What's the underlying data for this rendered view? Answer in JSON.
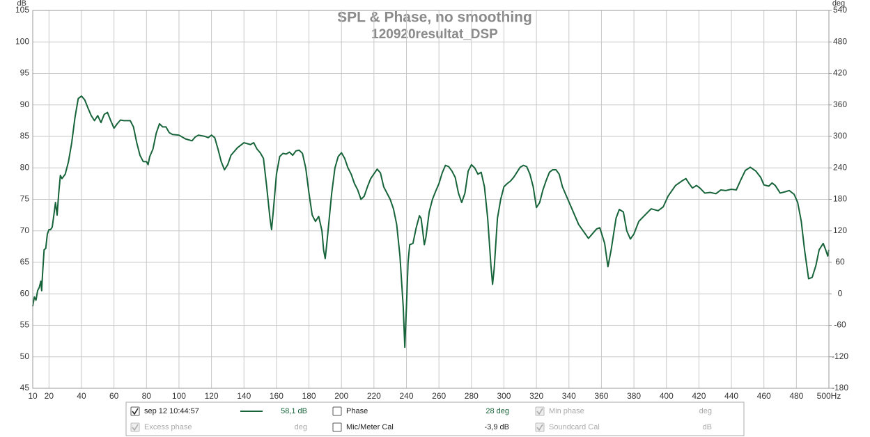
{
  "chart_data": {
    "type": "line",
    "title": "SPL & Phase, no smoothing",
    "subtitle": "120920resultat_DSP",
    "y_unit": "dB",
    "y2_unit": "deg",
    "xlim": [
      10,
      500
    ],
    "xticks": [
      10,
      20,
      40,
      60,
      80,
      100,
      120,
      140,
      160,
      180,
      200,
      220,
      240,
      260,
      280,
      300,
      320,
      340,
      360,
      380,
      400,
      420,
      440,
      460,
      480,
      {
        "value": 500,
        "label": "500Hz"
      }
    ],
    "ylim": [
      45,
      105
    ],
    "yticks": [
      45,
      50,
      55,
      60,
      65,
      70,
      75,
      80,
      85,
      90,
      95,
      100,
      105
    ],
    "y2lim": [
      -180,
      540
    ],
    "y2ticks": [
      -180,
      -120,
      -60,
      0,
      60,
      120,
      180,
      240,
      300,
      360,
      420,
      480,
      540
    ],
    "grid": true,
    "x": [
      10,
      11,
      12,
      13,
      14,
      15,
      15.5,
      16,
      17,
      18,
      19,
      20,
      21,
      22,
      23,
      24,
      25,
      26,
      27,
      28,
      30,
      32,
      34,
      36,
      38,
      40,
      42,
      44,
      46,
      48,
      50,
      52,
      54,
      56,
      58,
      60,
      62,
      64,
      66,
      70,
      72,
      74,
      76,
      78,
      80,
      81,
      82,
      84,
      86,
      88,
      90,
      92,
      94,
      96,
      100,
      104,
      108,
      110,
      112,
      116,
      118,
      120,
      122,
      124,
      126,
      128,
      130,
      132,
      136,
      140,
      144,
      146,
      148,
      150,
      152,
      154,
      156,
      157,
      158,
      160,
      162,
      164,
      166,
      168,
      170,
      172,
      174,
      176,
      178,
      180,
      182,
      184,
      186,
      188,
      189,
      190,
      191,
      194,
      196,
      198,
      200,
      202,
      204,
      206,
      208,
      210,
      212,
      214,
      216,
      218,
      222,
      224,
      226,
      230,
      232,
      234,
      236,
      238,
      239,
      240,
      241,
      242,
      244,
      246,
      248,
      249,
      250,
      251,
      252,
      254,
      256,
      258,
      260,
      262,
      264,
      266,
      268,
      270,
      272,
      274,
      276,
      278,
      280,
      282,
      284,
      286,
      288,
      290,
      292,
      293,
      294,
      296,
      298,
      300,
      302,
      304,
      306,
      308,
      310,
      312,
      314,
      316,
      318,
      320,
      322,
      324,
      326,
      328,
      330,
      332,
      334,
      336,
      346,
      352,
      357,
      359,
      362,
      364,
      366,
      369,
      371,
      373.5,
      375.6,
      377.8,
      380,
      383,
      386,
      390.6,
      394.9,
      398,
      401,
      405.6,
      410,
      412,
      414,
      416,
      418.5,
      420.6,
      423.6,
      427,
      430.5,
      433.5,
      436.5,
      440,
      443,
      445.6,
      448.6,
      451.6,
      455,
      458,
      460,
      463,
      465,
      467,
      470,
      473,
      475.6,
      478.6,
      480.8,
      483,
      485,
      487.5,
      489.7,
      492,
      494,
      496.5,
      498,
      499.3,
      500
    ],
    "series": [
      {
        "name": "sep 12 10:44:57",
        "color": "#17643a",
        "values": [
          58,
          59.5,
          59,
          60.5,
          61,
          62,
          60.5,
          63,
          67,
          67.2,
          69.5,
          70.2,
          70.2,
          70.6,
          72.5,
          74.5,
          72.5,
          76,
          78.8,
          78.3,
          79,
          81,
          84,
          88,
          91,
          91.4,
          90.8,
          89.5,
          88.3,
          87.5,
          88.3,
          87.2,
          88.5,
          88.8,
          87.5,
          86.3,
          87,
          87.6,
          87.5,
          87.5,
          86.5,
          84,
          82,
          81,
          81,
          80.5,
          81.8,
          83,
          85.5,
          87,
          86.5,
          86.5,
          85.6,
          85.3,
          85.2,
          84.6,
          84.3,
          84.9,
          85.2,
          85,
          84.8,
          85.2,
          84.8,
          83,
          81,
          79.7,
          80.5,
          82,
          83.2,
          84,
          83.7,
          84,
          83,
          82.4,
          81.5,
          77,
          72,
          70.2,
          73,
          79,
          81.8,
          82.3,
          82.2,
          82.5,
          82,
          82.7,
          82.8,
          82.3,
          80,
          76,
          72.5,
          71.5,
          72.3,
          70,
          67,
          65.6,
          68,
          76,
          80,
          81.8,
          82.4,
          81.5,
          80,
          79,
          77.5,
          76.5,
          75,
          75.5,
          77,
          78.3,
          79.8,
          79.2,
          77,
          75,
          73.5,
          71,
          66,
          58,
          51.5,
          58,
          65,
          67.8,
          68,
          70.5,
          72.4,
          72,
          70,
          67.8,
          69,
          73,
          75,
          76.3,
          77.5,
          79.2,
          80.4,
          80.2,
          79.5,
          78.5,
          76,
          74.5,
          76,
          79.5,
          80.5,
          80,
          79,
          79.3,
          77,
          72,
          64.5,
          61.5,
          64,
          72,
          75,
          77,
          77.5,
          77.9,
          78.5,
          79.3,
          80.1,
          80.4,
          80.2,
          79,
          77,
          73.7,
          74.5,
          76.5,
          78,
          79.3,
          79.7,
          79.7,
          79,
          77,
          71,
          68.8,
          70.3,
          70.5,
          68,
          64.3,
          67,
          72,
          73.4,
          73,
          70,
          68.7,
          69.5,
          71.5,
          72.3,
          73.5,
          73.2,
          73.8,
          75.5,
          77.2,
          78,
          78.3,
          77.5,
          76.8,
          77.2,
          76.8,
          76,
          76.1,
          75.9,
          76.5,
          76.4,
          76.6,
          76.5,
          78,
          79.6,
          80.1,
          79.5,
          78.5,
          77.3,
          77.1,
          77.6,
          77.2,
          76,
          76.2,
          76.4,
          75.8,
          74.5,
          71.5,
          67,
          62.4,
          62.6,
          64.5,
          67,
          68,
          67,
          66,
          67
        ]
      }
    ]
  },
  "legend": {
    "rows": [
      [
        {
          "label": "sep 12 10:44:57",
          "value_text": "58,1 dB",
          "checked": true,
          "enabled": true,
          "series": 0
        },
        {
          "label": "Phase",
          "value_text": "28 deg",
          "checked": false,
          "enabled": true
        },
        {
          "label": "Min phase",
          "value_text": "deg",
          "checked": true,
          "enabled": false
        }
      ],
      [
        {
          "label": "Excess phase",
          "value_text": "deg",
          "checked": true,
          "enabled": false
        },
        {
          "label": "Mic/Meter Cal",
          "value_text": "-3,9 dB",
          "checked": false,
          "enabled": true
        },
        {
          "label": "Soundcard Cal",
          "value_text": "dB",
          "checked": true,
          "enabled": false
        }
      ]
    ]
  }
}
